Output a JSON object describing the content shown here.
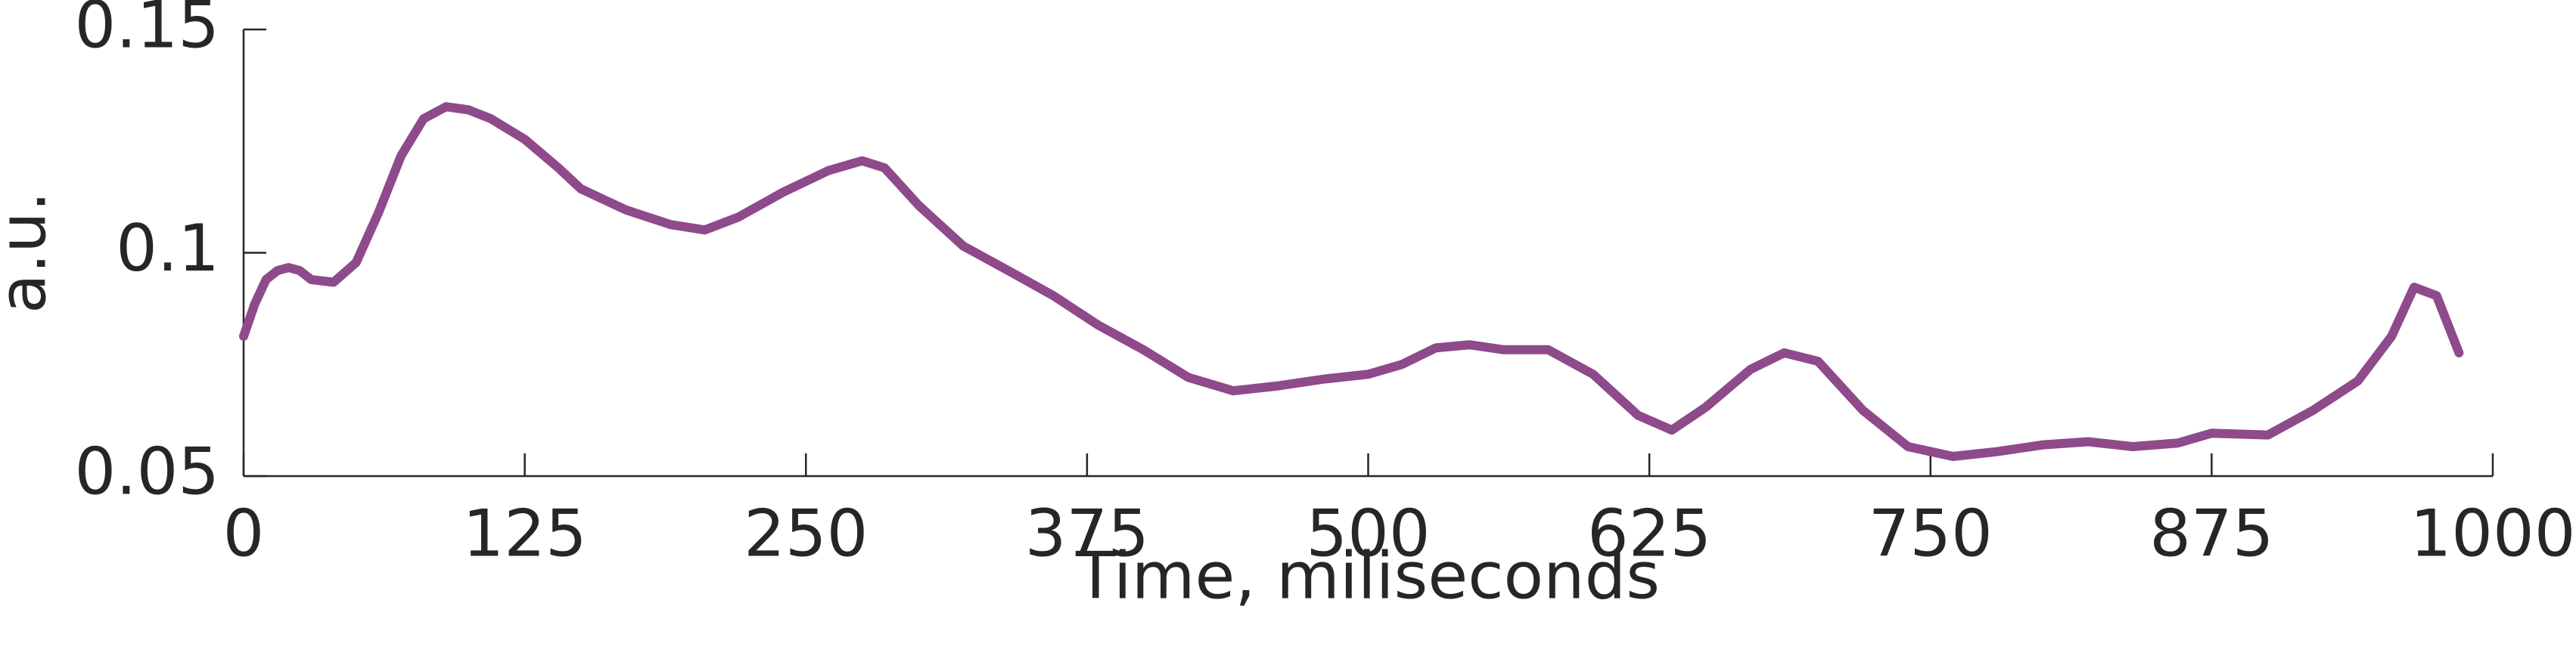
{
  "chart_data": {
    "type": "line",
    "xlabel": "Time, miliseconds",
    "ylabel": "a.u.",
    "x": [
      0,
      5,
      10,
      15,
      20,
      25,
      30,
      40,
      50,
      60,
      70,
      80,
      90,
      100,
      110,
      125,
      140,
      150,
      170,
      190,
      205,
      220,
      240,
      260,
      275,
      285,
      300,
      320,
      340,
      360,
      380,
      400,
      420,
      440,
      460,
      480,
      500,
      515,
      530,
      545,
      560,
      580,
      600,
      620,
      635,
      650,
      670,
      685,
      700,
      720,
      740,
      760,
      780,
      800,
      820,
      840,
      860,
      875,
      900,
      920,
      940,
      955,
      965,
      975,
      985
    ],
    "series": [
      {
        "color": "#8e4a8a",
        "values": [
          0.0813,
          0.0886,
          0.094,
          0.096,
          0.0967,
          0.096,
          0.094,
          0.0934,
          0.0978,
          0.109,
          0.1217,
          0.13,
          0.1327,
          0.132,
          0.13,
          0.1254,
          0.119,
          0.1143,
          0.1096,
          0.1063,
          0.1051,
          0.108,
          0.1136,
          0.1184,
          0.1206,
          0.119,
          0.1107,
          0.1015,
          0.096,
          0.0904,
          0.0838,
          0.0783,
          0.0721,
          0.0691,
          0.0702,
          0.0717,
          0.0728,
          0.075,
          0.0787,
          0.0794,
          0.0783,
          0.0783,
          0.0728,
          0.0636,
          0.0603,
          0.0654,
          0.0739,
          0.0776,
          0.0757,
          0.0647,
          0.0566,
          0.0544,
          0.0555,
          0.057,
          0.0577,
          0.0566,
          0.0574,
          0.0596,
          0.0592,
          0.0647,
          0.0713,
          0.0813,
          0.0923,
          0.0904,
          0.0776
        ]
      }
    ],
    "xlim": [
      0,
      1000
    ],
    "xticks": [
      0,
      125,
      250,
      375,
      500,
      625,
      750,
      875,
      1000
    ],
    "ylim": [
      0.05,
      0.15
    ],
    "yticks": [
      0.05,
      0.1,
      0.15
    ]
  }
}
